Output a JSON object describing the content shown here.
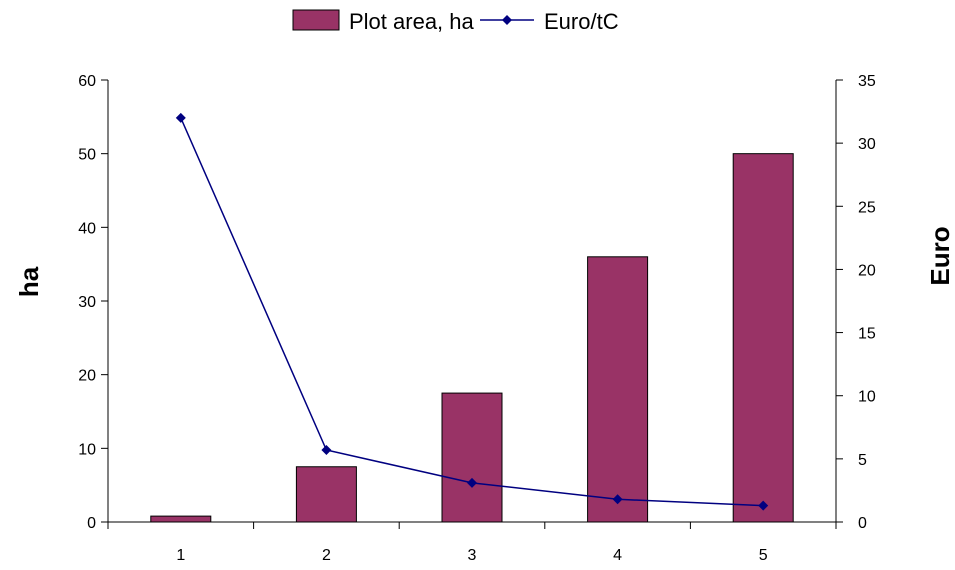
{
  "chart_data": {
    "type": "bar",
    "categories": [
      "1",
      "2",
      "3",
      "4",
      "5"
    ],
    "series": [
      {
        "name": "Plot area, ha",
        "type": "bar",
        "axis": "left",
        "values": [
          0.8,
          7.5,
          17.5,
          36,
          50
        ],
        "color": "#993366"
      },
      {
        "name": "Euro/tC",
        "type": "line",
        "axis": "right",
        "values": [
          32,
          5.7,
          3.1,
          1.8,
          1.3
        ],
        "color": "#000080"
      }
    ],
    "ylabel": "ha",
    "y2label": "Euro",
    "ylim": [
      0,
      60
    ],
    "y2lim": [
      0,
      35
    ],
    "yticks": [
      "0",
      "10",
      "20",
      "30",
      "40",
      "50",
      "60"
    ],
    "y2ticks": [
      "0",
      "5",
      "10",
      "15",
      "20",
      "25",
      "30",
      "35"
    ],
    "grid": false,
    "legend_position": "top"
  }
}
